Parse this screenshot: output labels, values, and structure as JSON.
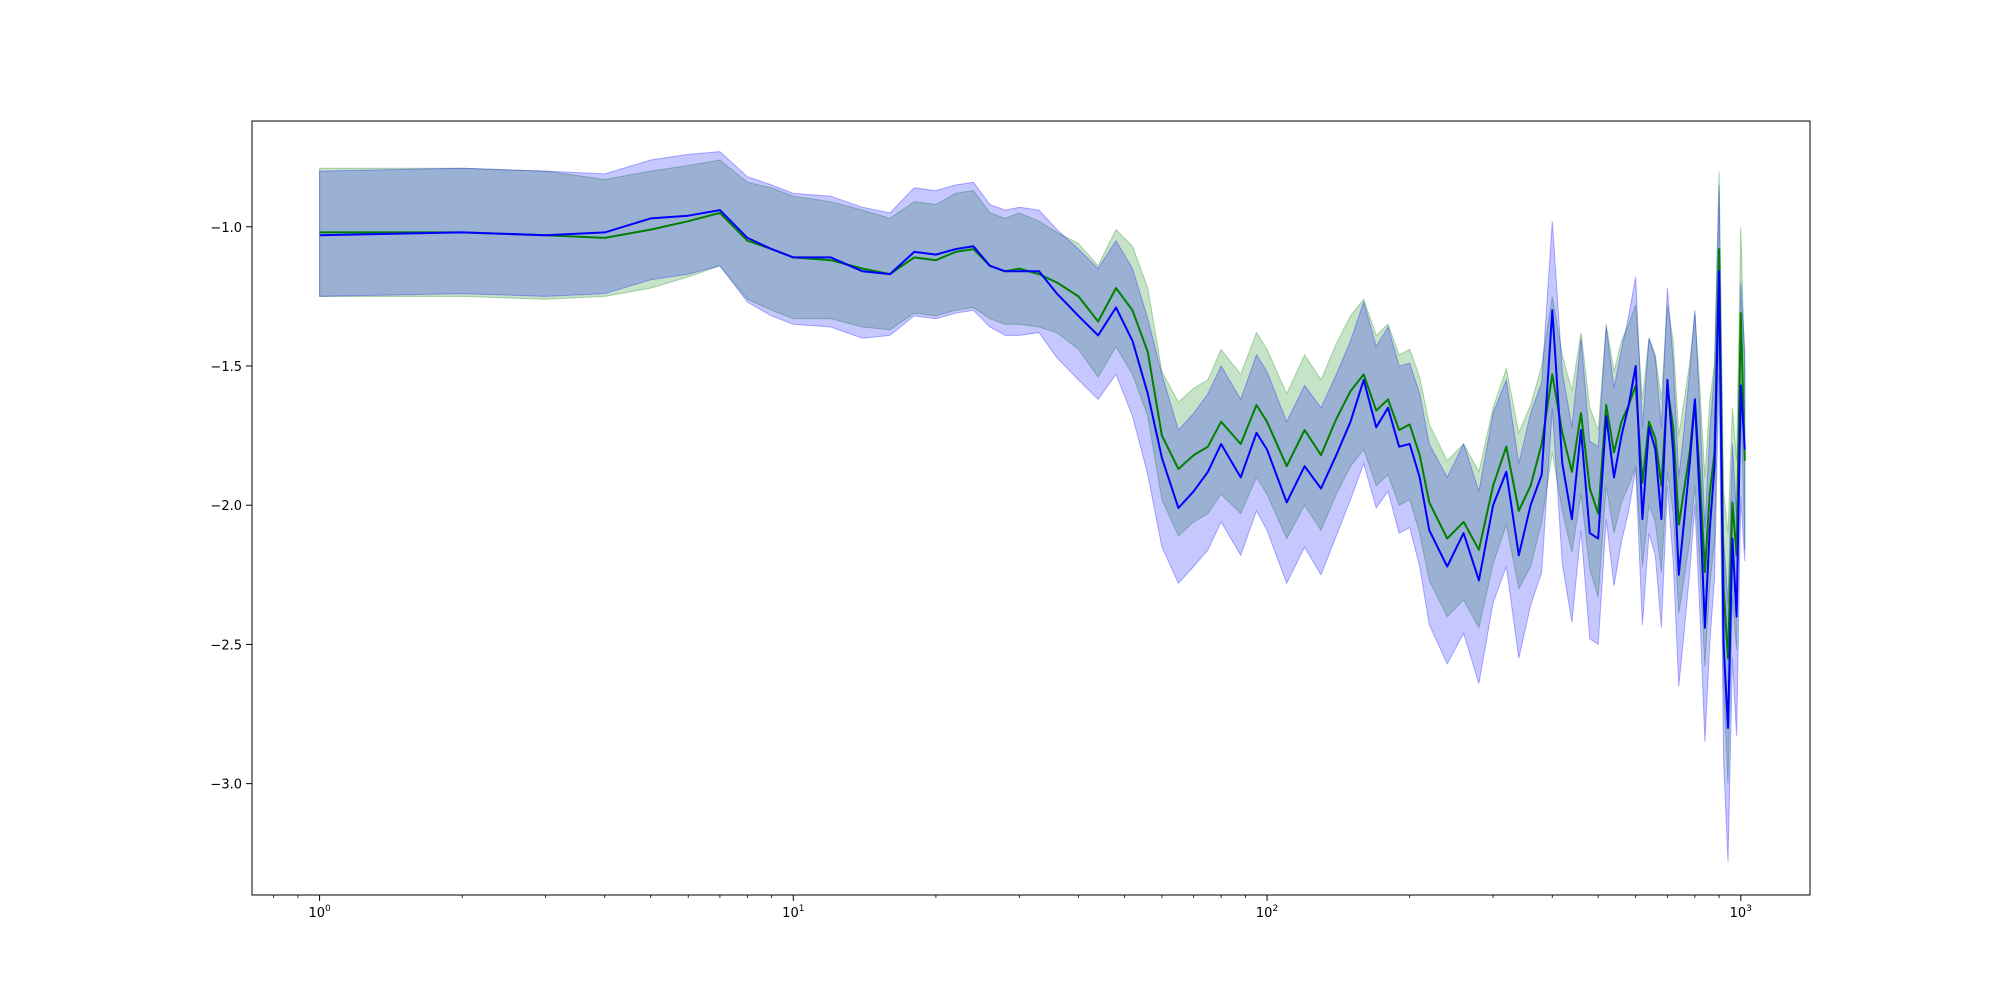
{
  "chart_data": {
    "type": "line",
    "title": "",
    "xlabel": "",
    "ylabel": "",
    "xscale": "log",
    "xlim": [
      0.72,
      1400
    ],
    "ylim": [
      -3.4,
      -0.62
    ],
    "grid": false,
    "legend": "none",
    "x_ticks": [
      {
        "value": 1,
        "base": "10",
        "exp": "0"
      },
      {
        "value": 10,
        "base": "10",
        "exp": "1"
      },
      {
        "value": 100,
        "base": "10",
        "exp": "2"
      },
      {
        "value": 1000,
        "base": "10",
        "exp": "3"
      }
    ],
    "y_ticks": [
      {
        "value": -1.0,
        "label": "−1.0"
      },
      {
        "value": -1.5,
        "label": "−1.5"
      },
      {
        "value": -2.0,
        "label": "−2.0"
      },
      {
        "value": -2.5,
        "label": "−2.5"
      },
      {
        "value": -3.0,
        "label": "−3.0"
      }
    ],
    "x": [
      1,
      2,
      3,
      4,
      5,
      6,
      7,
      8,
      9,
      10,
      12,
      14,
      16,
      18,
      20,
      22,
      24,
      26,
      28,
      30,
      33,
      36,
      40,
      44,
      48,
      52,
      56,
      60,
      65,
      70,
      75,
      80,
      88,
      95,
      100,
      110,
      120,
      130,
      140,
      150,
      160,
      170,
      180,
      190,
      200,
      210,
      220,
      240,
      260,
      280,
      300,
      320,
      340,
      360,
      380,
      400,
      420,
      440,
      460,
      480,
      500,
      520,
      540,
      560,
      580,
      600,
      620,
      640,
      660,
      680,
      700,
      720,
      740,
      760,
      780,
      800,
      820,
      840,
      860,
      880,
      900,
      920,
      940,
      960,
      980,
      1000,
      1020
    ],
    "series": [
      {
        "color": "#008000",
        "band_color": "#008000",
        "values": [
          -1.02,
          -1.02,
          -1.03,
          -1.04,
          -1.01,
          -0.98,
          -0.95,
          -1.05,
          -1.08,
          -1.11,
          -1.12,
          -1.15,
          -1.17,
          -1.11,
          -1.12,
          -1.09,
          -1.08,
          -1.14,
          -1.16,
          -1.15,
          -1.17,
          -1.2,
          -1.25,
          -1.34,
          -1.22,
          -1.3,
          -1.45,
          -1.75,
          -1.87,
          -1.82,
          -1.79,
          -1.7,
          -1.78,
          -1.64,
          -1.7,
          -1.86,
          -1.73,
          -1.82,
          -1.69,
          -1.59,
          -1.53,
          -1.66,
          -1.62,
          -1.73,
          -1.71,
          -1.82,
          -1.99,
          -2.12,
          -2.06,
          -2.16,
          -1.93,
          -1.79,
          -2.02,
          -1.93,
          -1.78,
          -1.53,
          -1.74,
          -1.88,
          -1.67,
          -1.94,
          -2.03,
          -1.64,
          -1.81,
          -1.7,
          -1.64,
          -1.57,
          -1.92,
          -1.7,
          -1.76,
          -1.93,
          -1.58,
          -1.72,
          -2.07,
          -1.94,
          -1.81,
          -1.62,
          -1.9,
          -2.24,
          -1.96,
          -1.81,
          -1.08,
          -2.3,
          -2.55,
          -1.99,
          -2.18,
          -1.31,
          -1.84
        ],
        "lower": [
          -1.25,
          -1.25,
          -1.26,
          -1.25,
          -1.22,
          -1.18,
          -1.14,
          -1.26,
          -1.3,
          -1.33,
          -1.33,
          -1.36,
          -1.37,
          -1.31,
          -1.32,
          -1.3,
          -1.29,
          -1.33,
          -1.35,
          -1.35,
          -1.36,
          -1.38,
          -1.44,
          -1.54,
          -1.43,
          -1.53,
          -1.68,
          -1.98,
          -2.11,
          -2.06,
          -2.03,
          -1.96,
          -2.03,
          -1.9,
          -1.96,
          -2.12,
          -2.0,
          -2.09,
          -1.96,
          -1.86,
          -1.8,
          -1.93,
          -1.89,
          -2.0,
          -1.98,
          -2.1,
          -2.27,
          -2.4,
          -2.34,
          -2.44,
          -2.21,
          -2.07,
          -2.3,
          -2.22,
          -2.06,
          -1.81,
          -2.02,
          -2.17,
          -1.96,
          -2.23,
          -2.33,
          -1.93,
          -2.1,
          -1.99,
          -1.93,
          -1.86,
          -2.22,
          -2.0,
          -2.06,
          -2.24,
          -1.88,
          -2.03,
          -2.39,
          -2.26,
          -2.13,
          -1.93,
          -2.22,
          -2.58,
          -2.29,
          -2.13,
          -1.36,
          -2.65,
          -3.0,
          -2.33,
          -2.52,
          -1.62,
          -2.16
        ],
        "upper": [
          -0.79,
          -0.79,
          -0.8,
          -0.83,
          -0.8,
          -0.78,
          -0.76,
          -0.84,
          -0.86,
          -0.89,
          -0.91,
          -0.94,
          -0.97,
          -0.91,
          -0.92,
          -0.88,
          -0.87,
          -0.95,
          -0.97,
          -0.95,
          -0.98,
          -1.02,
          -1.06,
          -1.14,
          -1.01,
          -1.07,
          -1.22,
          -1.52,
          -1.63,
          -1.58,
          -1.55,
          -1.44,
          -1.53,
          -1.38,
          -1.44,
          -1.6,
          -1.46,
          -1.55,
          -1.42,
          -1.32,
          -1.26,
          -1.39,
          -1.35,
          -1.46,
          -1.44,
          -1.54,
          -1.71,
          -1.84,
          -1.78,
          -1.88,
          -1.65,
          -1.51,
          -1.74,
          -1.64,
          -1.5,
          -1.25,
          -1.46,
          -1.59,
          -1.38,
          -1.65,
          -1.73,
          -1.35,
          -1.52,
          -1.41,
          -1.35,
          -1.28,
          -1.62,
          -1.4,
          -1.46,
          -1.62,
          -1.28,
          -1.41,
          -1.75,
          -1.62,
          -1.49,
          -1.31,
          -1.58,
          -1.9,
          -1.63,
          -1.49,
          -0.8,
          -1.95,
          -2.1,
          -1.65,
          -1.84,
          -1.0,
          -1.52
        ]
      },
      {
        "color": "#0000ff",
        "band_color": "#0000ff",
        "values": [
          -1.03,
          -1.02,
          -1.03,
          -1.02,
          -0.97,
          -0.96,
          -0.94,
          -1.04,
          -1.08,
          -1.11,
          -1.11,
          -1.16,
          -1.17,
          -1.09,
          -1.1,
          -1.08,
          -1.07,
          -1.14,
          -1.16,
          -1.16,
          -1.16,
          -1.24,
          -1.32,
          -1.39,
          -1.29,
          -1.41,
          -1.6,
          -1.83,
          -2.01,
          -1.95,
          -1.88,
          -1.78,
          -1.9,
          -1.74,
          -1.8,
          -1.99,
          -1.86,
          -1.94,
          -1.82,
          -1.7,
          -1.55,
          -1.72,
          -1.65,
          -1.79,
          -1.78,
          -1.9,
          -2.09,
          -2.22,
          -2.1,
          -2.27,
          -2.0,
          -1.88,
          -2.18,
          -2.0,
          -1.89,
          -1.3,
          -1.85,
          -2.05,
          -1.73,
          -2.1,
          -2.12,
          -1.68,
          -1.9,
          -1.75,
          -1.64,
          -1.5,
          -2.05,
          -1.72,
          -1.8,
          -2.05,
          -1.55,
          -1.81,
          -2.25,
          -2.05,
          -1.85,
          -1.62,
          -1.99,
          -2.44,
          -2.09,
          -1.86,
          -1.16,
          -2.5,
          -2.8,
          -2.12,
          -2.4,
          -1.57,
          -1.8
        ],
        "lower": [
          -1.25,
          -1.24,
          -1.25,
          -1.24,
          -1.19,
          -1.17,
          -1.14,
          -1.27,
          -1.32,
          -1.35,
          -1.36,
          -1.4,
          -1.39,
          -1.32,
          -1.33,
          -1.31,
          -1.3,
          -1.36,
          -1.39,
          -1.39,
          -1.38,
          -1.47,
          -1.55,
          -1.62,
          -1.53,
          -1.68,
          -1.89,
          -2.15,
          -2.28,
          -2.22,
          -2.16,
          -2.06,
          -2.18,
          -2.02,
          -2.09,
          -2.28,
          -2.15,
          -2.25,
          -2.11,
          -1.98,
          -1.85,
          -2.01,
          -1.95,
          -2.1,
          -2.08,
          -2.22,
          -2.43,
          -2.57,
          -2.46,
          -2.64,
          -2.35,
          -2.22,
          -2.55,
          -2.36,
          -2.24,
          -1.65,
          -2.21,
          -2.42,
          -2.09,
          -2.48,
          -2.5,
          -2.05,
          -2.29,
          -2.13,
          -2.02,
          -1.87,
          -2.43,
          -2.1,
          -2.18,
          -2.44,
          -1.93,
          -2.2,
          -2.65,
          -2.45,
          -2.24,
          -2.0,
          -2.39,
          -2.85,
          -2.5,
          -2.26,
          -1.53,
          -2.92,
          -3.28,
          -2.55,
          -2.83,
          -1.97,
          -2.2
        ],
        "upper": [
          -0.8,
          -0.79,
          -0.8,
          -0.81,
          -0.76,
          -0.74,
          -0.73,
          -0.82,
          -0.85,
          -0.88,
          -0.89,
          -0.93,
          -0.95,
          -0.86,
          -0.87,
          -0.85,
          -0.84,
          -0.92,
          -0.94,
          -0.93,
          -0.94,
          -1.01,
          -1.08,
          -1.15,
          -1.05,
          -1.15,
          -1.33,
          -1.53,
          -1.73,
          -1.67,
          -1.6,
          -1.5,
          -1.62,
          -1.46,
          -1.52,
          -1.7,
          -1.57,
          -1.65,
          -1.53,
          -1.41,
          -1.27,
          -1.43,
          -1.36,
          -1.5,
          -1.49,
          -1.6,
          -1.78,
          -1.9,
          -1.78,
          -1.95,
          -1.67,
          -1.55,
          -1.85,
          -1.67,
          -1.56,
          -0.98,
          -1.52,
          -1.72,
          -1.4,
          -1.77,
          -1.79,
          -1.36,
          -1.58,
          -1.44,
          -1.32,
          -1.18,
          -1.72,
          -1.4,
          -1.47,
          -1.72,
          -1.22,
          -1.48,
          -1.9,
          -1.72,
          -1.52,
          -1.3,
          -1.66,
          -2.08,
          -1.74,
          -1.52,
          -0.85,
          -2.12,
          -2.35,
          -1.78,
          -2.04,
          -1.2,
          -1.45
        ]
      }
    ]
  }
}
